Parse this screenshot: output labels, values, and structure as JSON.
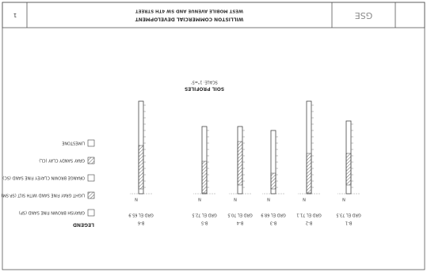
{
  "header": {
    "project": "WILLISTON COMMERCIAL DEVELOPMENT",
    "location": "WEST MOBILE AVENUE AND SW 4TH STREET",
    "company": "GSE",
    "sheet": "1"
  },
  "profile": {
    "title": "SOIL PROFILES",
    "scale": "SCALE: 1\"=5'"
  },
  "borings": [
    {
      "label": "B-1",
      "elevation": "GRD EL 73.5",
      "n": "N"
    },
    {
      "label": "B-2",
      "elevation": "GRD EL 71.1",
      "n": "N"
    },
    {
      "label": "B-3",
      "elevation": "GRD EL 68.9",
      "n": "N"
    },
    {
      "label": "B-4",
      "elevation": "GRD EL 70.5",
      "n": "N"
    },
    {
      "label": "B-5",
      "elevation": "GRD EL 72.5",
      "n": "N"
    },
    {
      "label": "B-6",
      "elevation": "GRD EL 65.9",
      "n": "N"
    }
  ],
  "legend": {
    "title": "LEGEND",
    "items": [
      "GRAYISH BROWN FINE SAND (SP)",
      "LIGHT GRAY FINE SAND WITH SILT (SP-SM)",
      "ORANGE BROWN CLAYEY FINE SAND (SC)",
      "GRAY SANDY CLAY (CL)",
      "LIMESTONE"
    ]
  }
}
